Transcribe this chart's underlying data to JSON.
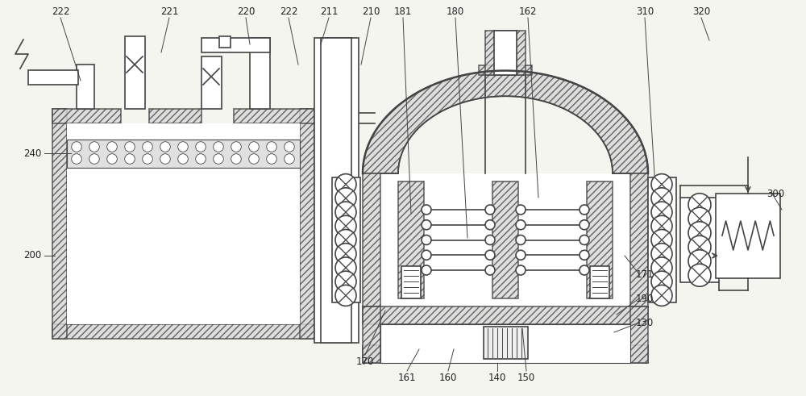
{
  "bg_color": "#f5f5f0",
  "line_color": "#444444",
  "label_color": "#222222",
  "figsize": [
    10.0,
    4.91
  ],
  "dpi": 100
}
